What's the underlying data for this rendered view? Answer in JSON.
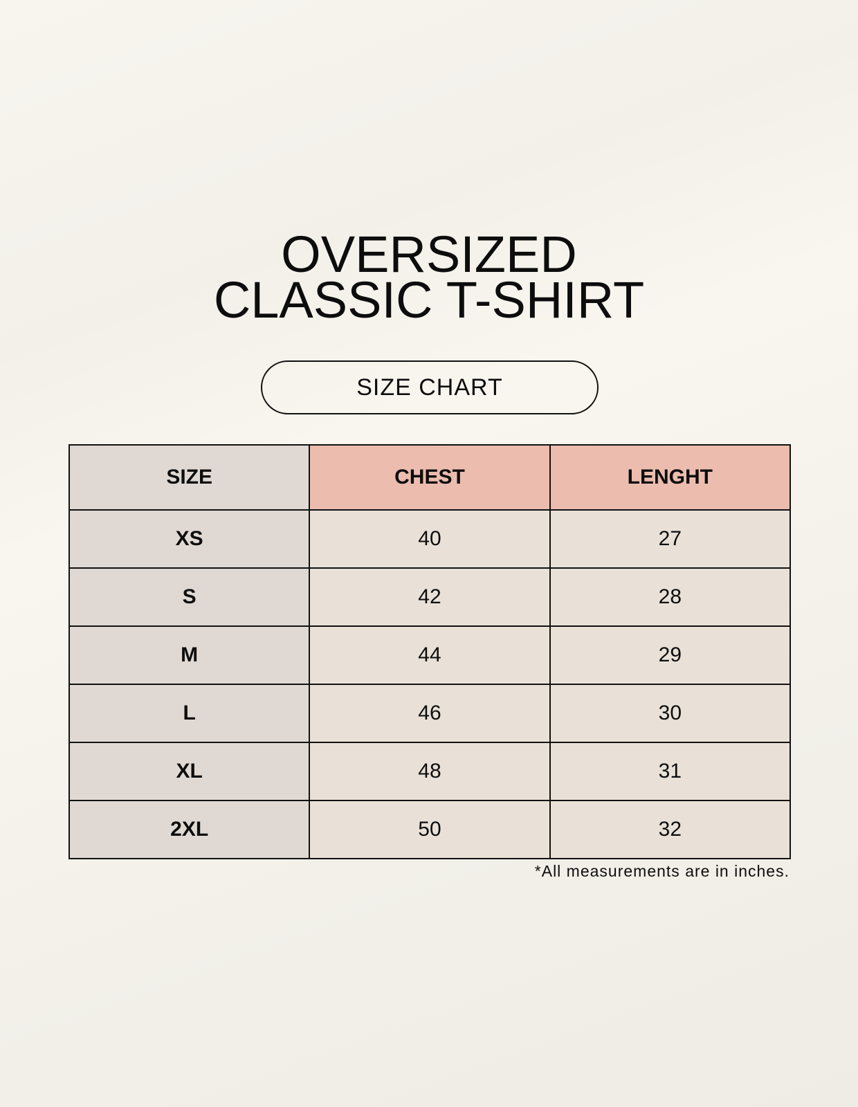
{
  "title": {
    "line1": "OVERSIZED",
    "line2": "CLASSIC T-SHIRT"
  },
  "subtitle_pill": "SIZE CHART",
  "table": {
    "headers": [
      "SIZE",
      "CHEST",
      "LENGHT"
    ],
    "rows": [
      [
        "XS",
        "40",
        "27"
      ],
      [
        "S",
        "42",
        "28"
      ],
      [
        "M",
        "44",
        "29"
      ],
      [
        "L",
        "46",
        "30"
      ],
      [
        "XL",
        "48",
        "31"
      ],
      [
        "2XL",
        "50",
        "32"
      ]
    ]
  },
  "footnote": "*All measurements are in inches.",
  "colors": {
    "header_accent": "#ecbcae",
    "size_column": "#e0d9d3",
    "value_cells": "#e9e1d7",
    "background": "#f8f5ef"
  }
}
